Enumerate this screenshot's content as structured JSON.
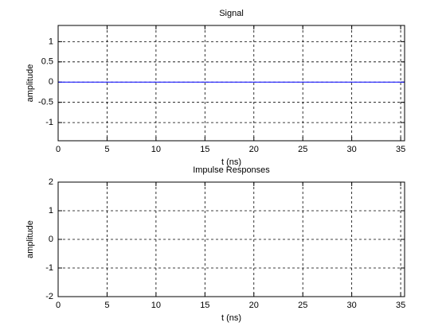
{
  "chart_data": [
    {
      "type": "line",
      "title": "Signal",
      "x_label": "t (ns)",
      "y_label": "amplitude",
      "series": [
        {
          "color": "#0000ff",
          "x": [
            0,
            35.4
          ],
          "values": [
            0,
            0
          ]
        }
      ],
      "xlim": [
        0,
        35.4
      ],
      "ylim": [
        -1.45,
        1.4
      ],
      "xticks": [
        0,
        5,
        10,
        15,
        20,
        25,
        30,
        35
      ],
      "yticks": [
        -1,
        -0.5,
        0,
        0.5,
        1
      ],
      "grid": true
    },
    {
      "type": "line",
      "title": "Impulse Responses",
      "x_label": "t (ns)",
      "y_label": "amplitude",
      "series": [],
      "xlim": [
        0,
        35.4
      ],
      "ylim": [
        -2,
        2
      ],
      "xticks": [
        0,
        5,
        10,
        15,
        20,
        25,
        30,
        35
      ],
      "yticks": [
        -2,
        -1,
        0,
        1,
        2
      ],
      "grid": true
    }
  ]
}
